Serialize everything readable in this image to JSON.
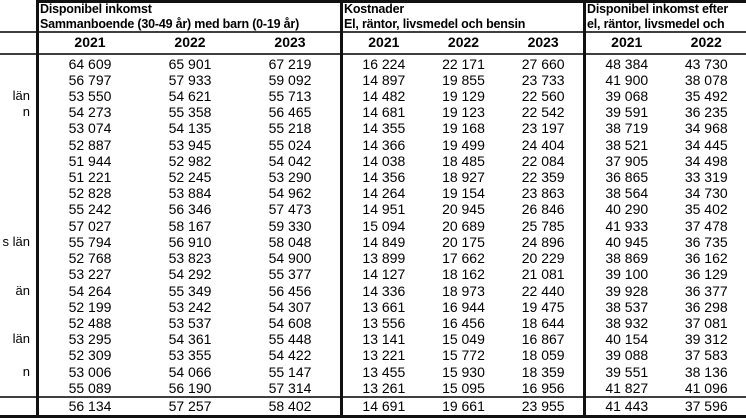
{
  "table": {
    "groups": [
      {
        "title_line1": "Disponibel inkomst",
        "title_line2": "Sammanboende (30-49 år) med barn (0-19 år)",
        "years": [
          "2021",
          "2022",
          "2023"
        ]
      },
      {
        "title_line1": "Kostnader",
        "title_line2": "El, räntor, livsmedel och bensin",
        "years": [
          "2021",
          "2022",
          "2023"
        ]
      },
      {
        "title_line1": "Disponibel inkomst efter",
        "title_line2": "el, räntor, livsmedel och",
        "years": [
          "2021",
          "2022"
        ]
      }
    ],
    "rows": [
      {
        "label_fragment": "",
        "income": [
          "64 609",
          "65 901",
          "67 219"
        ],
        "costs": [
          "16 224",
          "22 171",
          "27 660"
        ],
        "after": [
          "48 384",
          "43 730"
        ]
      },
      {
        "label_fragment": "",
        "income": [
          "56 797",
          "57 933",
          "59 092"
        ],
        "costs": [
          "14 897",
          "19 855",
          "23 733"
        ],
        "after": [
          "41 900",
          "38 078"
        ]
      },
      {
        "label_fragment": "län",
        "income": [
          "53 550",
          "54 621",
          "55 713"
        ],
        "costs": [
          "14 482",
          "19 129",
          "22 560"
        ],
        "after": [
          "39 068",
          "35 492"
        ]
      },
      {
        "label_fragment": "n",
        "income": [
          "54 273",
          "55 358",
          "56 465"
        ],
        "costs": [
          "14 681",
          "19 123",
          "22 542"
        ],
        "after": [
          "39 591",
          "36 235"
        ]
      },
      {
        "label_fragment": "",
        "income": [
          "53 074",
          "54 135",
          "55 218"
        ],
        "costs": [
          "14 355",
          "19 168",
          "23 197"
        ],
        "after": [
          "38 719",
          "34 968"
        ]
      },
      {
        "label_fragment": "",
        "income": [
          "52 887",
          "53 945",
          "55 024"
        ],
        "costs": [
          "14 366",
          "19 499",
          "24 404"
        ],
        "after": [
          "38 521",
          "34 445"
        ]
      },
      {
        "label_fragment": "",
        "income": [
          "51 944",
          "52 982",
          "54 042"
        ],
        "costs": [
          "14 038",
          "18 485",
          "22 084"
        ],
        "after": [
          "37 905",
          "34 498"
        ]
      },
      {
        "label_fragment": "",
        "income": [
          "51 221",
          "52 245",
          "53 290"
        ],
        "costs": [
          "14 356",
          "18 927",
          "22 359"
        ],
        "after": [
          "36 865",
          "33 319"
        ]
      },
      {
        "label_fragment": "",
        "income": [
          "52 828",
          "53 884",
          "54 962"
        ],
        "costs": [
          "14 264",
          "19 154",
          "23 863"
        ],
        "after": [
          "38 564",
          "34 730"
        ]
      },
      {
        "label_fragment": "",
        "income": [
          "55 242",
          "56 346",
          "57 473"
        ],
        "costs": [
          "14 951",
          "20 945",
          "26 846"
        ],
        "after": [
          "40 290",
          "35 402"
        ]
      },
      {
        "label_fragment": "",
        "income": [
          "57 027",
          "58 167",
          "59 330"
        ],
        "costs": [
          "15 094",
          "20 689",
          "25 785"
        ],
        "after": [
          "41 933",
          "37 478"
        ]
      },
      {
        "label_fragment": "s län",
        "income": [
          "55 794",
          "56 910",
          "58 048"
        ],
        "costs": [
          "14 849",
          "20 175",
          "24 896"
        ],
        "after": [
          "40 945",
          "36 735"
        ]
      },
      {
        "label_fragment": "",
        "income": [
          "52 768",
          "53 823",
          "54 900"
        ],
        "costs": [
          "13 899",
          "17 662",
          "20 229"
        ],
        "after": [
          "38 869",
          "36 162"
        ]
      },
      {
        "label_fragment": "",
        "income": [
          "53 227",
          "54 292",
          "55 377"
        ],
        "costs": [
          "14 127",
          "18 162",
          "21 081"
        ],
        "after": [
          "39 100",
          "36 129"
        ]
      },
      {
        "label_fragment": "än",
        "income": [
          "54 264",
          "55 349",
          "56 456"
        ],
        "costs": [
          "14 336",
          "18 973",
          "22 440"
        ],
        "after": [
          "39 928",
          "36 377"
        ]
      },
      {
        "label_fragment": "",
        "income": [
          "52 199",
          "53 242",
          "54 307"
        ],
        "costs": [
          "13 661",
          "16 944",
          "19 475"
        ],
        "after": [
          "38 537",
          "36 298"
        ]
      },
      {
        "label_fragment": "",
        "income": [
          "52 488",
          "53 537",
          "54 608"
        ],
        "costs": [
          "13 556",
          "16 456",
          "18 644"
        ],
        "after": [
          "38 932",
          "37 081"
        ]
      },
      {
        "label_fragment": "län",
        "income": [
          "53 295",
          "54 361",
          "55 448"
        ],
        "costs": [
          "13 141",
          "15 049",
          "16 867"
        ],
        "after": [
          "40 154",
          "39 312"
        ]
      },
      {
        "label_fragment": "",
        "income": [
          "52 309",
          "53 355",
          "54 422"
        ],
        "costs": [
          "13 221",
          "15 772",
          "18 059"
        ],
        "after": [
          "39 088",
          "37 583"
        ]
      },
      {
        "label_fragment": "n",
        "income": [
          "53 006",
          "54 066",
          "55 147"
        ],
        "costs": [
          "13 455",
          "15 930",
          "18 359"
        ],
        "after": [
          "39 551",
          "38 136"
        ]
      },
      {
        "label_fragment": "",
        "income": [
          "55 089",
          "56 190",
          "57 314"
        ],
        "costs": [
          "13 261",
          "15 095",
          "16 956"
        ],
        "after": [
          "41 827",
          "41 096"
        ]
      }
    ],
    "total_row": {
      "label_fragment": "",
      "income": [
        "56 134",
        "57 257",
        "58 402"
      ],
      "costs": [
        "14 691",
        "19 661",
        "23 955"
      ],
      "after": [
        "41 443",
        "37 596"
      ]
    },
    "colors": {
      "text": "#000000",
      "background": "#ffffff",
      "border_heavy": "#111111",
      "border_light": "#3f3f3f"
    }
  }
}
